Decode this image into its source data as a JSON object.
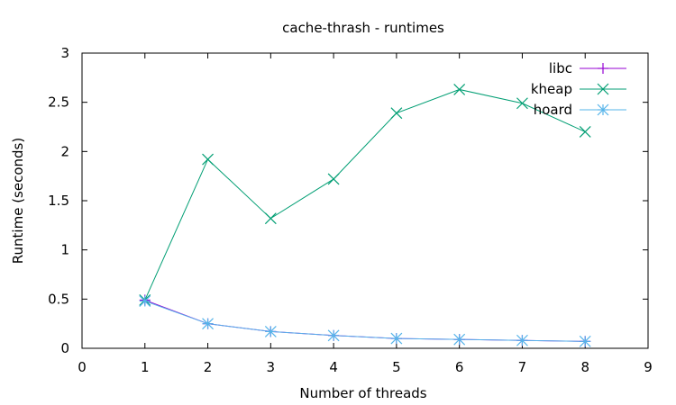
{
  "chart_data": {
    "type": "line",
    "title": "cache-thrash - runtimes",
    "xlabel": "Number of threads",
    "ylabel": "Runtime (seconds)",
    "xlim": [
      0,
      9
    ],
    "ylim": [
      0,
      3
    ],
    "xticks": [
      "0",
      "1",
      "2",
      "3",
      "4",
      "5",
      "6",
      "7",
      "8",
      "9"
    ],
    "yticks": [
      "0",
      "0.5",
      "1",
      "1.5",
      "2",
      "2.5",
      "3"
    ],
    "grid": false,
    "legend_position": "top-right",
    "x": [
      1,
      2,
      3,
      4,
      5,
      6,
      7,
      8
    ],
    "series": [
      {
        "name": "libc",
        "color": "#9400d3",
        "marker": "plus",
        "values": [
          0.49,
          0.25,
          0.17,
          0.13,
          0.1,
          0.09,
          0.08,
          0.07
        ]
      },
      {
        "name": "kheap",
        "color": "#009e73",
        "marker": "cross",
        "values": [
          0.49,
          1.92,
          1.32,
          1.72,
          2.39,
          2.63,
          2.49,
          2.2
        ]
      },
      {
        "name": "hoard",
        "color": "#56b4e9",
        "marker": "star",
        "values": [
          0.48,
          0.25,
          0.17,
          0.13,
          0.1,
          0.09,
          0.08,
          0.07
        ]
      }
    ]
  }
}
